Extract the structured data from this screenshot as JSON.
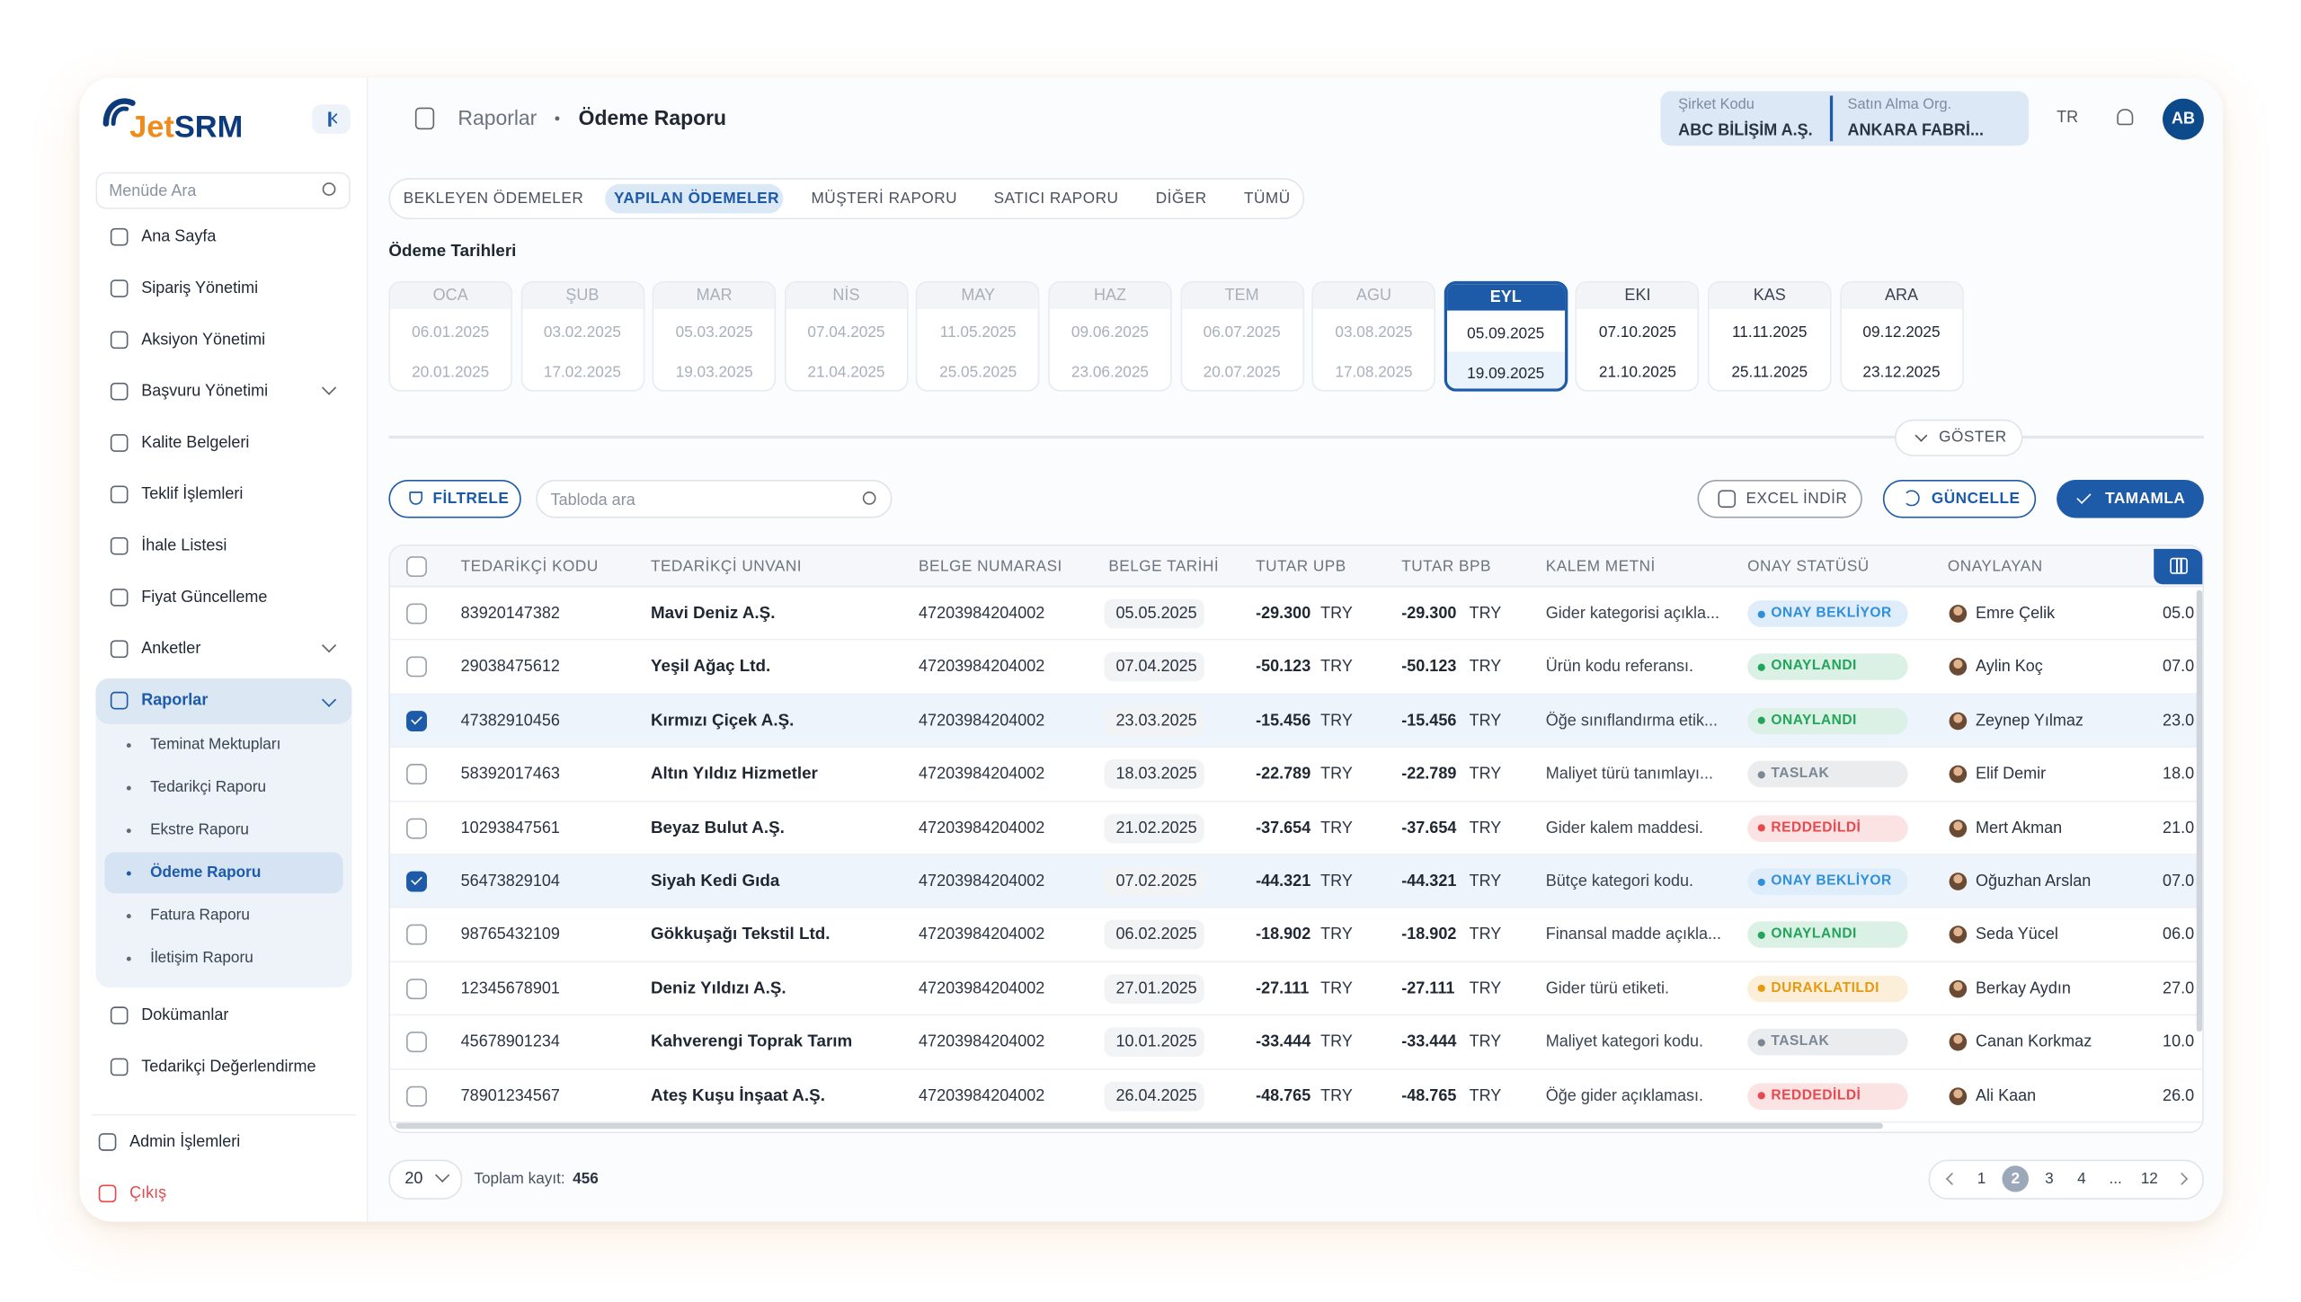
{
  "sidebar": {
    "logo": [
      "Jet",
      "SRM"
    ],
    "search_placeholder": "Menüde Ara",
    "menu": [
      {
        "label": "Ana Sayfa",
        "expandable": false
      },
      {
        "label": "Sipariş Yönetimi",
        "expandable": false
      },
      {
        "label": "Aksiyon Yönetimi",
        "expandable": false
      },
      {
        "label": "Başvuru Yönetimi",
        "expandable": true
      },
      {
        "label": "Kalite Belgeleri",
        "expandable": false
      },
      {
        "label": "Teklif İşlemleri",
        "expandable": false
      },
      {
        "label": "İhale Listesi",
        "expandable": false
      },
      {
        "label": "Fiyat Güncelleme",
        "expandable": false
      },
      {
        "label": "Anketler",
        "expandable": true
      },
      {
        "label": "Raporlar",
        "expandable": true,
        "expanded": true,
        "active": true,
        "active_child": 3,
        "children": [
          "Teminat Mektupları",
          "Tedarikçi Raporu",
          "Ekstre Raporu",
          "Ödeme Raporu",
          "Fatura Raporu",
          "İletişim Raporu"
        ]
      },
      {
        "label": "Dokümanlar",
        "expandable": false
      },
      {
        "label": "Tedarikçi Değerlendirme",
        "expandable": false
      }
    ],
    "bottom": [
      "Admin İşlemleri",
      "Çıkış"
    ]
  },
  "header": {
    "breadcrumb": [
      "Raporlar",
      "Ödeme Raporu"
    ],
    "company": [
      {
        "label": "Şirket Kodu",
        "value": "ABC BİLİŞİM A.Ş."
      },
      {
        "label": "Satın Alma Org.",
        "value": "ANKARA FABRİ..."
      }
    ],
    "language": "TR",
    "avatar": "AB"
  },
  "tabs": {
    "items": [
      "BEKLEYEN ÖDEMELER",
      "YAPILAN ÖDEMELER",
      "MÜŞTERİ RAPORU",
      "SATICI RAPORU",
      "DİĞER",
      "TÜMÜ"
    ],
    "active": 1
  },
  "dates": {
    "title": "Ödeme Tarihleri",
    "months": [
      {
        "name": "OCA",
        "dates": [
          "06.01.2025",
          "20.01.2025"
        ],
        "state": "past"
      },
      {
        "name": "ŞUB",
        "dates": [
          "03.02.2025",
          "17.02.2025"
        ],
        "state": "past"
      },
      {
        "name": "MAR",
        "dates": [
          "05.03.2025",
          "19.03.2025"
        ],
        "state": "past"
      },
      {
        "name": "NİS",
        "dates": [
          "07.04.2025",
          "21.04.2025"
        ],
        "state": "past"
      },
      {
        "name": "MAY",
        "dates": [
          "11.05.2025",
          "25.05.2025"
        ],
        "state": "past"
      },
      {
        "name": "HAZ",
        "dates": [
          "09.06.2025",
          "23.06.2025"
        ],
        "state": "past"
      },
      {
        "name": "TEM",
        "dates": [
          "06.07.2025",
          "20.07.2025"
        ],
        "state": "past"
      },
      {
        "name": "AGU",
        "dates": [
          "03.08.2025",
          "17.08.2025"
        ],
        "state": "past"
      },
      {
        "name": "EYL",
        "dates": [
          "05.09.2025",
          "19.09.2025"
        ],
        "state": "selected"
      },
      {
        "name": "EKI",
        "dates": [
          "07.10.2025",
          "21.10.2025"
        ],
        "state": "upcoming"
      },
      {
        "name": "KAS",
        "dates": [
          "11.11.2025",
          "25.11.2025"
        ],
        "state": "upcoming"
      },
      {
        "name": "ARA",
        "dates": [
          "09.12.2025",
          "23.12.2025"
        ],
        "state": "upcoming"
      }
    ],
    "show_button": "GÖSTER"
  },
  "toolbar": {
    "filter": "FİLTRELE",
    "search_placeholder": "Tabloda ara",
    "excel": "EXCEL İNDİR",
    "refresh": "GÜNCELLE",
    "complete": "TAMAMLA"
  },
  "table": {
    "columns": [
      "TEDARİKÇİ KODU",
      "TEDARİKÇİ UNVANI",
      "BELGE NUMARASI",
      "BELGE TARİHİ",
      "TUTAR UPB",
      "TUTAR BPB",
      "KALEM METNİ",
      "ONAY STATÜSÜ",
      "ONAYLAYAN"
    ],
    "rows": [
      {
        "checked": false,
        "code": "83920147382",
        "name": "Mavi Deniz A.Ş.",
        "doc": "47203984204002",
        "date": "05.05.2025",
        "upb": "-29.300",
        "upb_cur": "TRY",
        "bpb": "-29.300",
        "bpb_cur": "TRY",
        "text": "Gider kategorisi açıkla...",
        "status": {
          "text": "ONAY BEKLİYOR",
          "color": "#2f8fd8"
        },
        "approver": "Emre Çelik",
        "extra": "05.0"
      },
      {
        "checked": false,
        "code": "29038475612",
        "name": "Yeşil Ağaç Ltd.",
        "doc": "47203984204002",
        "date": "07.04.2025",
        "upb": "-50.123",
        "upb_cur": "TRY",
        "bpb": "-50.123",
        "bpb_cur": "TRY",
        "text": "Ürün kodu referansı.",
        "status": {
          "text": "ONAYLANDI",
          "color": "#22a55a"
        },
        "approver": "Aylin Koç",
        "extra": "07.0"
      },
      {
        "checked": true,
        "code": "47382910456",
        "name": "Kırmızı Çiçek A.Ş.",
        "doc": "47203984204002",
        "date": "23.03.2025",
        "upb": "-15.456",
        "upb_cur": "TRY",
        "bpb": "-15.456",
        "bpb_cur": "TRY",
        "text": "Öğe sınıflandırma etik...",
        "status": {
          "text": "ONAYLANDI",
          "color": "#22a55a"
        },
        "approver": "Zeynep Yılmaz",
        "extra": "23.0"
      },
      {
        "checked": false,
        "code": "58392017463",
        "name": "Altın Yıldız Hizmetler",
        "doc": "47203984204002",
        "date": "18.03.2025",
        "upb": "-22.789",
        "upb_cur": "TRY",
        "bpb": "-22.789",
        "bpb_cur": "TRY",
        "text": "Maliyet türü tanımlayı...",
        "status": {
          "text": "TASLAK",
          "color": "#7b8794"
        },
        "approver": "Elif Demir",
        "extra": "18.0"
      },
      {
        "checked": false,
        "code": "10293847561",
        "name": "Beyaz Bulut A.Ş.",
        "doc": "47203984204002",
        "date": "21.02.2025",
        "upb": "-37.654",
        "upb_cur": "TRY",
        "bpb": "-37.654",
        "bpb_cur": "TRY",
        "text": "Gider kalem maddesi.",
        "status": {
          "text": "REDDEDİLDİ",
          "color": "#e5484d"
        },
        "approver": "Mert Akman",
        "extra": "21.0"
      },
      {
        "checked": true,
        "code": "56473829104",
        "name": "Siyah Kedi Gıda",
        "doc": "47203984204002",
        "date": "07.02.2025",
        "upb": "-44.321",
        "upb_cur": "TRY",
        "bpb": "-44.321",
        "bpb_cur": "TRY",
        "text": "Bütçe kategori kodu.",
        "status": {
          "text": "ONAY BEKLİYOR",
          "color": "#2f8fd8"
        },
        "approver": "Oğuzhan Arslan",
        "extra": "07.0"
      },
      {
        "checked": false,
        "code": "98765432109",
        "name": "Gökkuşağı Tekstil Ltd.",
        "doc": "47203984204002",
        "date": "06.02.2025",
        "upb": "-18.902",
        "upb_cur": "TRY",
        "bpb": "-18.902",
        "bpb_cur": "TRY",
        "text": "Finansal madde açıkla...",
        "status": {
          "text": "ONAYLANDI",
          "color": "#22a55a"
        },
        "approver": "Seda Yücel",
        "extra": "06.0"
      },
      {
        "checked": false,
        "code": "12345678901",
        "name": "Deniz Yıldızı A.Ş.",
        "doc": "47203984204002",
        "date": "27.01.2025",
        "upb": "-27.111",
        "upb_cur": "TRY",
        "bpb": "-27.111",
        "bpb_cur": "TRY",
        "text": "Gider türü etiketi.",
        "status": {
          "text": "DURAKLATILDI",
          "color": "#e69a10"
        },
        "approver": "Berkay Aydın",
        "extra": "27.0"
      },
      {
        "checked": false,
        "code": "45678901234",
        "name": "Kahverengi Toprak Tarım",
        "doc": "47203984204002",
        "date": "10.01.2025",
        "upb": "-33.444",
        "upb_cur": "TRY",
        "bpb": "-33.444",
        "bpb_cur": "TRY",
        "text": "Maliyet kategori kodu.",
        "status": {
          "text": "TASLAK",
          "color": "#7b8794"
        },
        "approver": "Canan Korkmaz",
        "extra": "10.0"
      },
      {
        "checked": false,
        "code": "78901234567",
        "name": "Ateş Kuşu İnşaat A.Ş.",
        "doc": "47203984204002",
        "date": "26.04.2025",
        "upb": "-48.765",
        "upb_cur": "TRY",
        "bpb": "-48.765",
        "bpb_cur": "TRY",
        "text": "Öğe gider açıklaması.",
        "status": {
          "text": "REDDEDİLDİ",
          "color": "#e5484d"
        },
        "approver": "Ali Kaan",
        "extra": "26.0"
      }
    ]
  },
  "footer": {
    "page_size": "20",
    "total_label": "Toplam kayıt:",
    "total": "456",
    "pages": [
      "1",
      "2",
      "3",
      "4",
      "...",
      "12"
    ],
    "active_page": 1
  }
}
